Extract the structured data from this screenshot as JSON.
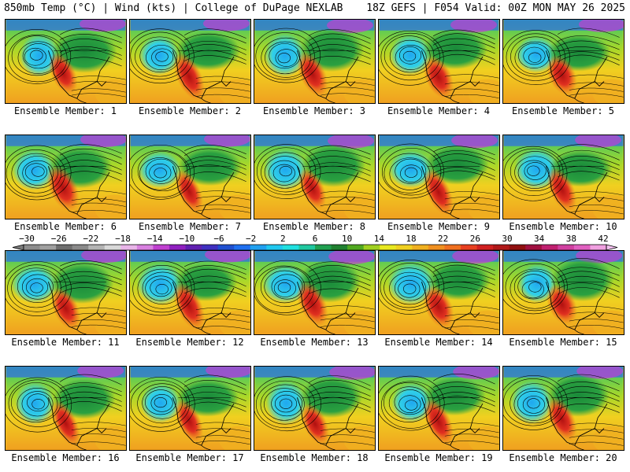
{
  "header": {
    "left": "850mb Temp (°C) | Wind (kts) | College of DuPage NEXLAB",
    "right": "18Z GEFS | F054 Valid: 00Z MON MAY 26 2025"
  },
  "members": [
    {
      "label": "Ensemble Member: 1"
    },
    {
      "label": "Ensemble Member: 2"
    },
    {
      "label": "Ensemble Member: 3"
    },
    {
      "label": "Ensemble Member: 4"
    },
    {
      "label": "Ensemble Member: 5"
    },
    {
      "label": "Ensemble Member: 6"
    },
    {
      "label": "Ensemble Member: 7"
    },
    {
      "label": "Ensemble Member: 8"
    },
    {
      "label": "Ensemble Member: 9"
    },
    {
      "label": "Ensemble Member: 10"
    },
    {
      "label": "Ensemble Member: 11"
    },
    {
      "label": "Ensemble Member: 12"
    },
    {
      "label": "Ensemble Member: 13"
    },
    {
      "label": "Ensemble Member: 14"
    },
    {
      "label": "Ensemble Member: 15"
    },
    {
      "label": "Ensemble Member: 16"
    },
    {
      "label": "Ensemble Member: 17"
    },
    {
      "label": "Ensemble Member: 18"
    },
    {
      "label": "Ensemble Member: 19"
    },
    {
      "label": "Ensemble Member: 20"
    }
  ],
  "colorbar": {
    "labels": [
      "−30",
      "−26",
      "−22",
      "−18",
      "−14",
      "−10",
      "−6",
      "−2",
      "2",
      "6",
      "10",
      "14",
      "18",
      "22",
      "26",
      "30",
      "34",
      "38",
      "42"
    ],
    "colors": [
      "#8c8c8c",
      "#a0a0a0",
      "#6e6e6e",
      "#8a8a8a",
      "#b4b4b4",
      "#d8d8d8",
      "#e8b4e8",
      "#d880e0",
      "#c040d0",
      "#9020c0",
      "#6020b0",
      "#4030c0",
      "#2050d0",
      "#2070f0",
      "#20a0f0",
      "#20c8f0",
      "#20e0e0",
      "#20c8a0",
      "#20a050",
      "#208030",
      "#50a820",
      "#a0d020",
      "#e8e820",
      "#f0d020",
      "#f0b020",
      "#f09020",
      "#f07020",
      "#e84020",
      "#d02020",
      "#b01818",
      "#901010",
      "#a01040",
      "#c02070",
      "#d040a0",
      "#e060c0",
      "#f0a0e0"
    ]
  }
}
